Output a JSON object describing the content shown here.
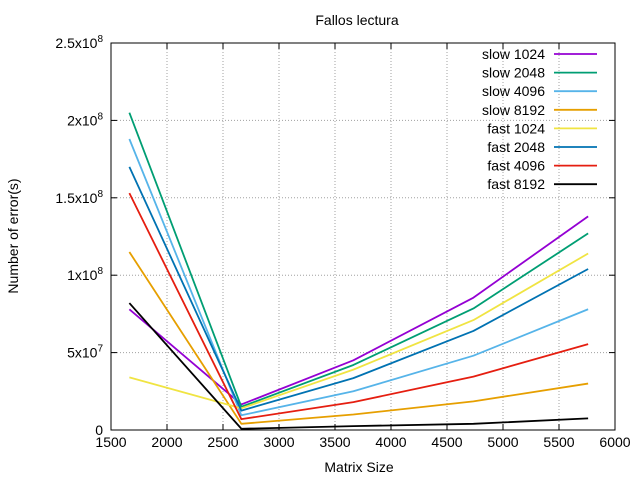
{
  "chart_data": {
    "type": "line",
    "title": "Fallos lectura",
    "xlabel": "Matrix Size",
    "ylabel": "Number of error(s)",
    "xlim": [
      1500,
      6000
    ],
    "ylim": [
      0,
      250000000
    ],
    "xticks": [
      1500,
      2000,
      2500,
      3000,
      3500,
      4000,
      4500,
      5000,
      5500,
      6000
    ],
    "xtick_labels": [
      "1500",
      "2000",
      "2500",
      "3000",
      "3500",
      "4000",
      "4500",
      "5000",
      "5500",
      "6000"
    ],
    "yticks": [
      0,
      50000000,
      100000000,
      150000000,
      200000000,
      250000000
    ],
    "ytick_labels": [
      {
        "mant": "0",
        "exp": ""
      },
      {
        "mant": "5x10",
        "exp": "7"
      },
      {
        "mant": "1x10",
        "exp": "8"
      },
      {
        "mant": "1.5x10",
        "exp": "8"
      },
      {
        "mant": "2x10",
        "exp": "8"
      },
      {
        "mant": "2.5x10",
        "exp": "8"
      }
    ],
    "grid": true,
    "legend_position": "top-right",
    "x": [
      1664,
      2664,
      3664,
      4736,
      5760
    ],
    "series": [
      {
        "name": "slow 1024",
        "color": "#9400d3",
        "values": [
          78000000,
          16500000,
          45000000,
          85500000,
          138000000
        ]
      },
      {
        "name": "slow 2048",
        "color": "#009e73",
        "values": [
          205000000,
          15000000,
          42000000,
          78500000,
          127000000
        ]
      },
      {
        "name": "slow 4096",
        "color": "#56b4e9",
        "values": [
          188000000,
          9500000,
          25000000,
          48000000,
          78000000
        ]
      },
      {
        "name": "slow 8192",
        "color": "#e69f00",
        "values": [
          115000000,
          4000000,
          10000000,
          18500000,
          30000000
        ]
      },
      {
        "name": "fast 1024",
        "color": "#f0e442",
        "values": [
          34000000,
          14000000,
          39000000,
          71000000,
          114000000
        ]
      },
      {
        "name": "fast 2048",
        "color": "#0072b2",
        "values": [
          170000000,
          12500000,
          33500000,
          64000000,
          104000000
        ]
      },
      {
        "name": "fast 4096",
        "color": "#e51e10",
        "values": [
          153000000,
          7000000,
          18000000,
          34500000,
          55500000
        ]
      },
      {
        "name": "fast 8192",
        "color": "#000000",
        "values": [
          82000000,
          800000,
          2500000,
          4000000,
          7500000
        ]
      }
    ]
  }
}
